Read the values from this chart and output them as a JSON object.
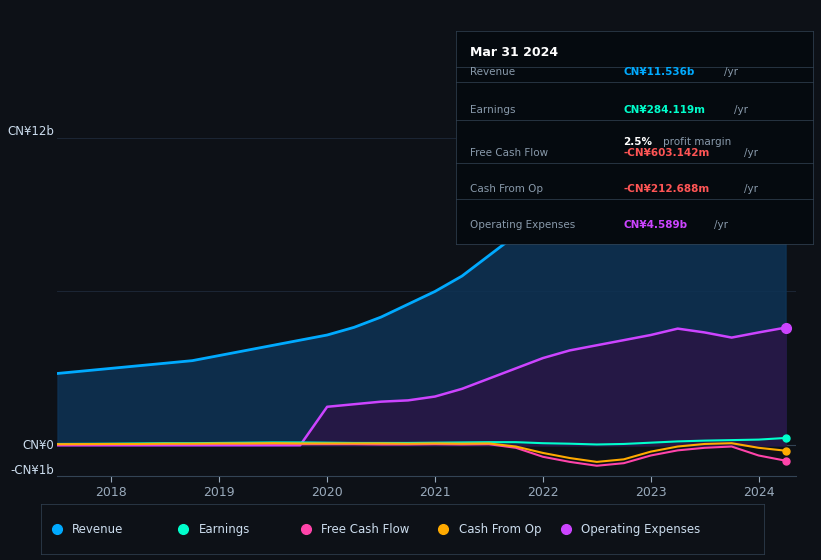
{
  "background_color": "#0d1117",
  "plot_bg_color": "#0d1117",
  "grid_color": "#1e2a3a",
  "text_color": "#8899aa",
  "years": [
    2017.5,
    2018.0,
    2018.25,
    2018.5,
    2018.75,
    2019.0,
    2019.25,
    2019.5,
    2019.75,
    2020.0,
    2020.25,
    2020.5,
    2020.75,
    2021.0,
    2021.25,
    2021.5,
    2021.75,
    2022.0,
    2022.25,
    2022.5,
    2022.75,
    2023.0,
    2023.25,
    2023.5,
    2023.75,
    2024.0,
    2024.25
  ],
  "revenue": [
    2.8,
    3.0,
    3.1,
    3.2,
    3.3,
    3.5,
    3.7,
    3.9,
    4.1,
    4.3,
    4.6,
    5.0,
    5.5,
    6.0,
    6.6,
    7.4,
    8.2,
    9.0,
    9.7,
    10.2,
    10.7,
    11.1,
    11.5,
    11.6,
    11.3,
    11.4,
    11.536
  ],
  "operating_expenses": [
    0.0,
    0.0,
    0.0,
    0.0,
    0.0,
    0.0,
    0.0,
    0.0,
    0.0,
    1.5,
    1.6,
    1.7,
    1.75,
    1.9,
    2.2,
    2.6,
    3.0,
    3.4,
    3.7,
    3.9,
    4.1,
    4.3,
    4.55,
    4.4,
    4.2,
    4.4,
    4.589
  ],
  "earnings": [
    0.05,
    0.06,
    0.07,
    0.08,
    0.08,
    0.09,
    0.1,
    0.11,
    0.11,
    0.1,
    0.09,
    0.09,
    0.09,
    0.1,
    0.11,
    0.12,
    0.12,
    0.08,
    0.06,
    0.03,
    0.05,
    0.1,
    0.15,
    0.18,
    0.2,
    0.22,
    0.284
  ],
  "free_cash_flow": [
    0.02,
    0.03,
    0.03,
    0.04,
    0.04,
    0.05,
    0.05,
    0.05,
    0.04,
    0.04,
    0.04,
    0.03,
    0.03,
    0.04,
    0.03,
    0.04,
    -0.1,
    -0.45,
    -0.65,
    -0.8,
    -0.7,
    -0.4,
    -0.2,
    -0.1,
    -0.05,
    -0.4,
    -0.603
  ],
  "cash_from_op": [
    0.04,
    0.05,
    0.05,
    0.06,
    0.06,
    0.07,
    0.07,
    0.08,
    0.07,
    0.07,
    0.07,
    0.07,
    0.06,
    0.07,
    0.06,
    0.07,
    -0.05,
    -0.3,
    -0.5,
    -0.65,
    -0.55,
    -0.25,
    -0.05,
    0.05,
    0.08,
    -0.1,
    -0.213
  ],
  "revenue_color": "#00aaff",
  "revenue_fill": "#0d3355",
  "operating_expenses_color": "#cc44ff",
  "operating_expenses_fill": "#2a1545",
  "earnings_color": "#00ffcc",
  "free_cash_flow_color": "#ff44aa",
  "cash_from_op_color": "#ffaa00",
  "ylim": [
    -1.2,
    13.0
  ],
  "xlabel_ticks": [
    2018,
    2019,
    2020,
    2021,
    2022,
    2023,
    2024
  ],
  "info_box": {
    "date": "Mar 31 2024",
    "revenue_val": "CN¥11.536b",
    "earnings_val": "CN¥284.119m",
    "profit_margin": "2.5%",
    "fcf_val": "-CN¥603.142m",
    "cash_from_op_val": "-CN¥212.688m",
    "op_expenses_val": "CN¥4.589b"
  },
  "legend_items": [
    {
      "label": "Revenue",
      "color": "#00aaff"
    },
    {
      "label": "Earnings",
      "color": "#00ffcc"
    },
    {
      "label": "Free Cash Flow",
      "color": "#ff44aa"
    },
    {
      "label": "Cash From Op",
      "color": "#ffaa00"
    },
    {
      "label": "Operating Expenses",
      "color": "#cc44ff"
    }
  ]
}
